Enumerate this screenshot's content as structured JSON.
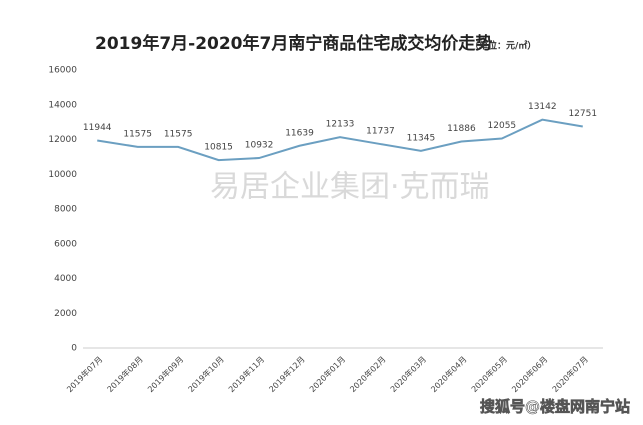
{
  "chart_data": {
    "type": "line",
    "title": "2019年7月-2020年7月南宁商品住宅成交均价走势",
    "subtitle": "（单位：元/㎡）",
    "categories": [
      "2019年07月",
      "2019年08月",
      "2019年09月",
      "2019年10月",
      "2019年11月",
      "2019年12月",
      "2020年01月",
      "2020年02月",
      "2020年03月",
      "2020年04月",
      "2020年05月",
      "2020年06月",
      "2020年07月"
    ],
    "series": [
      {
        "color": "#6b9fc1",
        "values": [
          11944,
          11575,
          11575,
          10815,
          10932,
          11639,
          12133,
          11737,
          11345,
          11886,
          12055,
          13142,
          12751
        ]
      }
    ],
    "ylim": [
      0,
      16000
    ],
    "yticks": [
      0,
      2000,
      4000,
      6000,
      8000,
      10000,
      12000,
      14000,
      16000
    ],
    "grid": false,
    "annotations": [
      "易居企业集团·克而瑞",
      "搜狐号@楼盘网南宁站"
    ]
  }
}
